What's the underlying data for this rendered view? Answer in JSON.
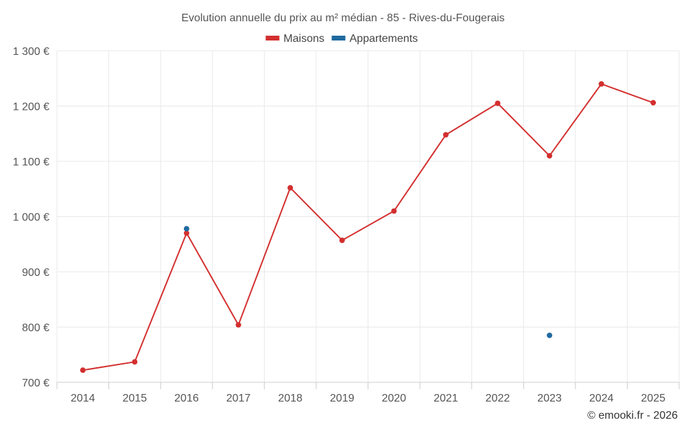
{
  "chart_data": {
    "type": "line",
    "title": "Evolution annuelle du prix au m² médian - 85 - Rives-du-Fougerais",
    "categories": [
      "2014",
      "2015",
      "2016",
      "2017",
      "2018",
      "2019",
      "2020",
      "2021",
      "2022",
      "2023",
      "2024",
      "2025"
    ],
    "series": [
      {
        "name": "Maisons",
        "color": "#d32f2f",
        "values": [
          722,
          737,
          970,
          804,
          1052,
          957,
          1010,
          1148,
          1205,
          1110,
          1240,
          1206
        ]
      },
      {
        "name": "Appartements",
        "color": "#1f6aa0",
        "values": [
          null,
          null,
          978,
          null,
          null,
          null,
          null,
          null,
          null,
          785,
          null,
          null
        ]
      }
    ],
    "ylim": [
      700,
      1300
    ],
    "yticks": [
      700,
      800,
      900,
      1000,
      1100,
      1200,
      1300
    ],
    "ytick_labels": [
      "700 €",
      "800 €",
      "900 €",
      "1 000 €",
      "1 100 €",
      "1 200 €",
      "1 300 €"
    ],
    "xlabel": "",
    "ylabel": "",
    "grid": true,
    "legend_position": "top-center"
  },
  "credit": "© emooki.fr - 2026"
}
